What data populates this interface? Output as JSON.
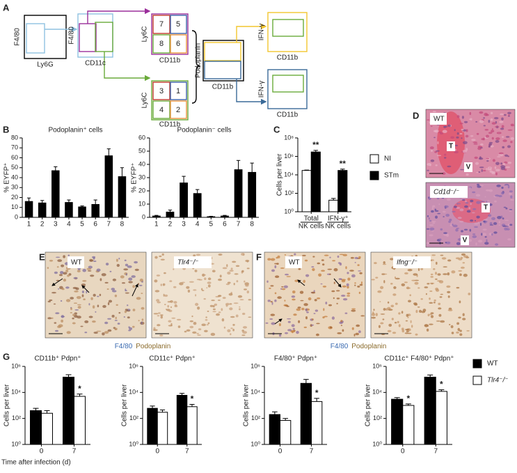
{
  "panel_labels": [
    "A",
    "B",
    "C",
    "D",
    "E",
    "F",
    "G"
  ],
  "diagram": {
    "plots": [
      {
        "x_label": "Ly6G",
        "y_label": "F4/80"
      },
      {
        "x_label": "CD11c",
        "y_label": "F4/80"
      },
      {
        "x_label": "CD11b",
        "y_label": "Ly6C",
        "gates": [
          "7",
          "5",
          "8",
          "6"
        ]
      },
      {
        "x_label": "CD11b",
        "y_label": "Ly6C",
        "gates": [
          "3",
          "1",
          "4",
          "2"
        ]
      },
      {
        "x_label": "CD11b",
        "y_label": "Podoplanin"
      },
      {
        "x_label": "CD11b",
        "y_label": "IFN-γ"
      },
      {
        "x_label": "CD11b",
        "y_label": "IFN-γ"
      }
    ]
  },
  "images": [
    {
      "label": "WT",
      "marks": [
        "T",
        "V"
      ]
    },
    {
      "label": "Cd1d⁻/⁻",
      "marks": [
        "T",
        "V"
      ]
    },
    {
      "label": "WT"
    },
    {
      "label": "Tlr4⁻/⁻"
    },
    {
      "label": "WT"
    },
    {
      "label": "Ifng⁻/⁻"
    }
  ],
  "stain_captions": [
    [
      "F4/80",
      "Podoplanin"
    ],
    [
      "F4/80",
      "Podoplanin"
    ]
  ],
  "chart_data": [
    {
      "type": "bar",
      "title": "Podoplanin⁺ cells",
      "ylabel": "% EYFP⁺",
      "categories": [
        "1",
        "2",
        "3",
        "4",
        "5",
        "6",
        "7",
        "8"
      ],
      "series": [
        {
          "color": "#000000",
          "values": [
            16,
            14.5,
            47,
            15,
            10.5,
            13,
            62,
            41
          ],
          "error": [
            3.5,
            2.5,
            4,
            2.5,
            1,
            4.5,
            7,
            9
          ]
        }
      ],
      "ylim": [
        0,
        80
      ],
      "yticks": [
        0,
        10,
        20,
        30,
        40,
        50,
        60,
        70,
        80
      ]
    },
    {
      "type": "bar",
      "title": "Podoplanin⁻ cells",
      "ylabel": "% EYFP⁺",
      "categories": [
        "1",
        "2",
        "3",
        "4",
        "5",
        "6",
        "7",
        "8"
      ],
      "series": [
        {
          "color": "#000000",
          "values": [
            1,
            4,
            26,
            18,
            0.5,
            1,
            36,
            34
          ],
          "error": [
            0.5,
            1.5,
            5,
            3,
            0.3,
            0.5,
            7,
            7
          ]
        }
      ],
      "ylim": [
        0,
        60
      ],
      "yticks": [
        0,
        10,
        20,
        30,
        40,
        50,
        60
      ]
    },
    {
      "type": "bar",
      "ylabel": "Cells per liver",
      "log": true,
      "categories": [
        [
          "Total",
          "NK cells"
        ],
        [
          "IFN-γ⁺",
          "NK cells"
        ]
      ],
      "series": [
        {
          "name": "NI",
          "color": "#ffffff",
          "values": [
            30000,
            18
          ],
          "error": [
            3000,
            10
          ]
        },
        {
          "name": "STm",
          "color": "#000000",
          "values": [
            3000000,
            30000
          ],
          "error": [
            1500000,
            12000
          ]
        }
      ],
      "annotations": [
        {
          "text": "**",
          "series": 1,
          "index": 0
        },
        {
          "text": "**",
          "series": 1,
          "index": 1
        }
      ],
      "ylim": [
        1,
        100000000
      ],
      "yticks": [
        {
          "value": 1,
          "label": "10⁰"
        },
        {
          "value": 100,
          "label": "10²"
        },
        {
          "value": 10000,
          "label": "10⁴"
        },
        {
          "value": 1000000,
          "label": "10⁶"
        },
        {
          "value": 100000000,
          "label": "10⁸"
        }
      ]
    },
    {
      "type": "bar",
      "title": "CD11b⁺ Pdpn⁺",
      "ylabel": "Cells per liver",
      "xlabel": "Time after infection (d)",
      "log": true,
      "categories": [
        "0",
        "7"
      ],
      "series": [
        {
          "color": "#000000",
          "values": [
            400,
            150000
          ],
          "error": [
            200,
            80000
          ]
        },
        {
          "color": "#ffffff",
          "values": [
            250,
            5000
          ],
          "error": [
            150,
            2500
          ]
        }
      ],
      "annotations": [
        {
          "text": "*",
          "series": 1,
          "index": 1
        }
      ],
      "ylim": [
        1,
        1000000
      ],
      "yticks": [
        {
          "value": 1,
          "label": "10⁰"
        },
        {
          "value": 100,
          "label": "10²"
        },
        {
          "value": 10000,
          "label": "10⁴"
        },
        {
          "value": 1000000,
          "label": "10⁶"
        }
      ]
    },
    {
      "type": "bar",
      "title": "CD11c⁺ Pdpn⁺",
      "ylabel": "Cells per liver",
      "log": true,
      "categories": [
        "0",
        "7"
      ],
      "series": [
        {
          "color": "#000000",
          "values": [
            600,
            6000
          ],
          "error": [
            300,
            2500
          ]
        },
        {
          "color": "#ffffff",
          "values": [
            300,
            800
          ],
          "error": [
            150,
            400
          ]
        }
      ],
      "annotations": [
        {
          "text": "*",
          "series": 1,
          "index": 1
        }
      ],
      "ylim": [
        1,
        1000000
      ],
      "yticks": [
        {
          "value": 1,
          "label": "10⁰"
        },
        {
          "value": 100,
          "label": "10²"
        },
        {
          "value": 10000,
          "label": "10⁴"
        },
        {
          "value": 1000000,
          "label": "10⁶"
        }
      ]
    },
    {
      "type": "bar",
      "title": "F4/80⁺ Pdpn⁺",
      "ylabel": "Cells per liver",
      "log": true,
      "categories": [
        "0",
        "7"
      ],
      "series": [
        {
          "color": "#000000",
          "values": [
            200,
            50000
          ],
          "error": [
            120,
            50000
          ]
        },
        {
          "color": "#ffffff",
          "values": [
            70,
            2000
          ],
          "error": [
            30,
            1500
          ]
        }
      ],
      "annotations": [
        {
          "text": "*",
          "series": 1,
          "index": 1
        }
      ],
      "ylim": [
        1,
        1000000
      ],
      "yticks": [
        {
          "value": 1,
          "label": "10⁰"
        },
        {
          "value": 100,
          "label": "10²"
        },
        {
          "value": 10000,
          "label": "10⁴"
        },
        {
          "value": 1000000,
          "label": "10⁶"
        }
      ]
    },
    {
      "type": "bar",
      "title": "CD11c⁺ F4/80⁺ Pdpn⁺",
      "ylabel": "Cells per liver",
      "log": true,
      "categories": [
        "0",
        "7"
      ],
      "series": [
        {
          "name": "WT",
          "color": "#000000",
          "values": [
            3000,
            150000
          ],
          "error": [
            1000,
            70000
          ]
        },
        {
          "name": "Tlr4⁻/⁻",
          "color": "#ffffff",
          "values": [
            1000,
            12000
          ],
          "error": [
            300,
            4000
          ]
        }
      ],
      "annotations": [
        {
          "text": "*",
          "series": 1,
          "index": 0
        },
        {
          "text": "*",
          "series": 1,
          "index": 1
        }
      ],
      "ylim": [
        1,
        1000000
      ],
      "yticks": [
        {
          "value": 1,
          "label": "10⁰"
        },
        {
          "value": 100,
          "label": "10²"
        },
        {
          "value": 10000,
          "label": "10⁴"
        },
        {
          "value": 1000000,
          "label": "10⁶"
        }
      ]
    }
  ]
}
